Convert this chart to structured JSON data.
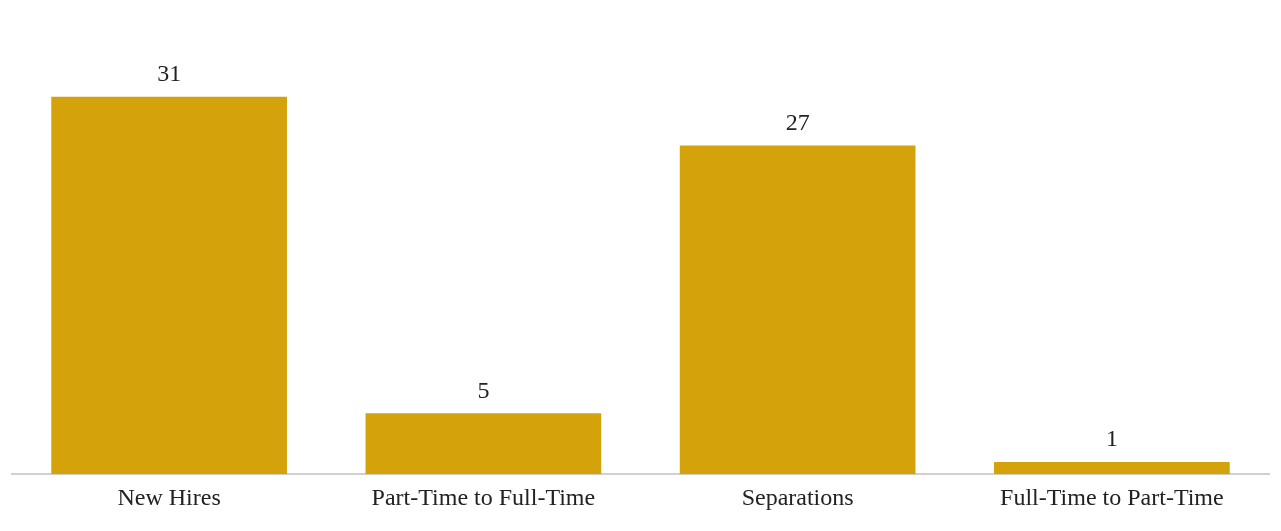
{
  "chart_data": {
    "type": "bar",
    "categories": [
      "New Hires",
      "Part-Time to Full-Time",
      "Separations",
      "Full-Time to Part-Time"
    ],
    "values": [
      31,
      5,
      27,
      1
    ],
    "color": "#d4a20a",
    "data_labels": true,
    "grid": false,
    "legend": false
  }
}
